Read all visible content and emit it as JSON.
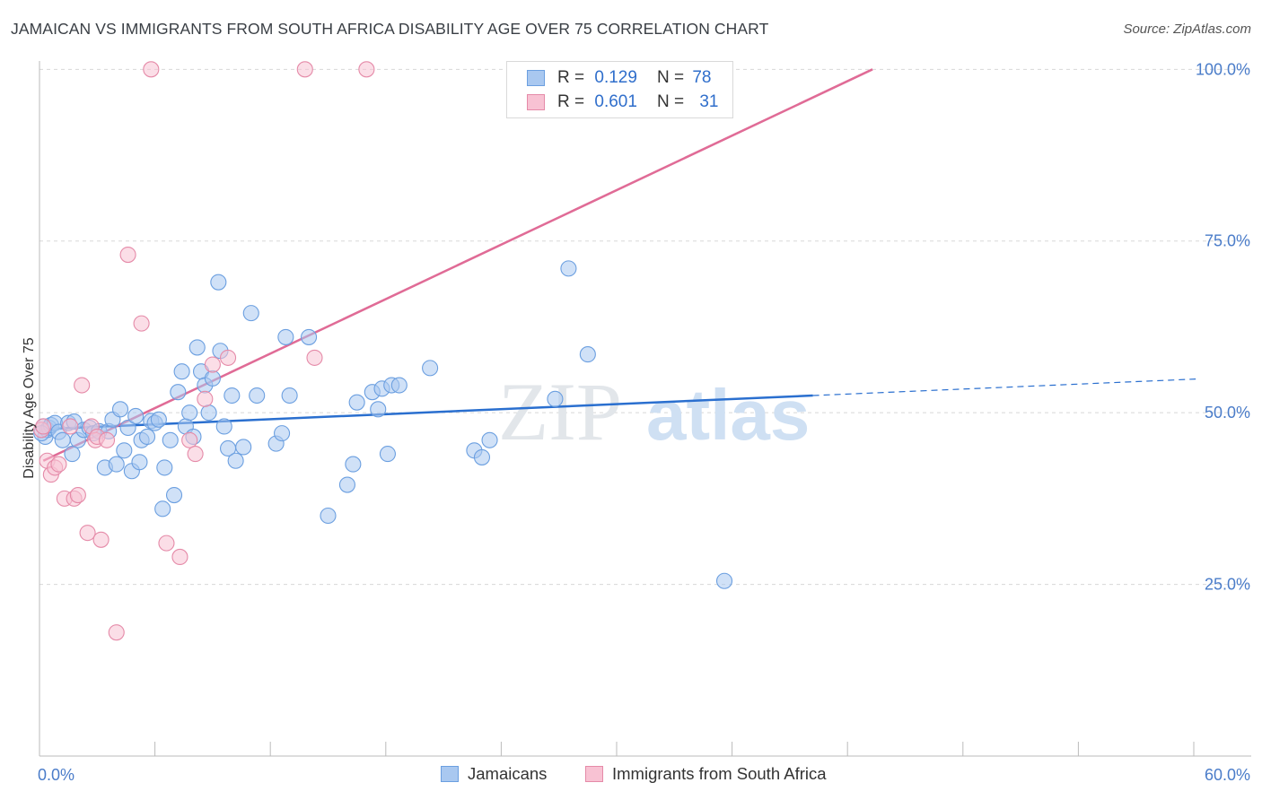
{
  "title": "JAMAICAN VS IMMIGRANTS FROM SOUTH AFRICA DISABILITY AGE OVER 75 CORRELATION CHART",
  "source": "Source: ZipAtlas.com",
  "watermark": {
    "zip": "ZIP",
    "atlas": "atlas"
  },
  "legend": {
    "rows": [
      {
        "r_label": "R =",
        "r_value": "0.129",
        "n_label": "N =",
        "n_value": "78",
        "color": "#a9c8f0",
        "border": "#6b9fe0"
      },
      {
        "r_label": "R =",
        "r_value": "0.601",
        "n_label": "N =",
        "n_value": "31",
        "color": "#f8c2d3",
        "border": "#e58aa8"
      }
    ]
  },
  "bottom_legend": [
    {
      "label": "Jamaicans",
      "color": "#a9c8f0",
      "border": "#6b9fe0"
    },
    {
      "label": "Immigrants from South Africa",
      "color": "#f8c2d3",
      "border": "#e58aa8"
    }
  ],
  "chart_data": {
    "type": "scatter",
    "title": "JAMAICAN VS IMMIGRANTS FROM SOUTH AFRICA DISABILITY AGE OVER 75 CORRELATION CHART",
    "xlabel": "",
    "ylabel": "Disability Age Over 75",
    "xlim": [
      0,
      60
    ],
    "ylim": [
      0,
      102
    ],
    "x_tick_labels": [
      {
        "value": 0,
        "label": "0.0%"
      },
      {
        "value": 60,
        "label": "60.0%"
      }
    ],
    "y_tick_labels": [
      {
        "value": 25,
        "label": "25.0%"
      },
      {
        "value": 50,
        "label": "50.0%"
      },
      {
        "value": 75,
        "label": "75.0%"
      },
      {
        "value": 100,
        "label": "100.0%"
      }
    ],
    "y_gridlines": [
      25,
      50,
      75,
      100
    ],
    "x_minor_ticks": [
      0,
      6,
      12,
      18,
      24,
      30,
      36,
      42,
      48,
      54,
      60
    ],
    "series": [
      {
        "name": "Jamaicans",
        "color": "#6b9fe0",
        "fill": "#a9c8f0",
        "trend": {
          "x0": 0.2,
          "y0": 47.6,
          "x1": 40.2,
          "y1": 52.5,
          "dash_to_x": 60.1,
          "dash_to_y": 54.9
        },
        "points": [
          [
            0.2,
            48.0
          ],
          [
            0.3,
            46.5
          ],
          [
            0.4,
            47.5
          ],
          [
            0.5,
            47.8
          ],
          [
            0.6,
            48.2
          ],
          [
            0.8,
            48.5
          ],
          [
            1.0,
            47.2
          ],
          [
            1.2,
            46.0
          ],
          [
            1.5,
            48.5
          ],
          [
            1.7,
            44.0
          ],
          [
            1.8,
            48.7
          ],
          [
            2.0,
            46.0
          ],
          [
            2.3,
            47.5
          ],
          [
            2.6,
            47.8
          ],
          [
            2.8,
            47.0
          ],
          [
            3.1,
            47.3
          ],
          [
            3.4,
            42.0
          ],
          [
            3.6,
            47.3
          ],
          [
            3.8,
            49.0
          ],
          [
            4.0,
            42.5
          ],
          [
            4.2,
            50.5
          ],
          [
            4.4,
            44.5
          ],
          [
            4.6,
            47.8
          ],
          [
            4.8,
            41.5
          ],
          [
            5.0,
            49.5
          ],
          [
            5.2,
            42.8
          ],
          [
            5.3,
            46.0
          ],
          [
            5.6,
            46.5
          ],
          [
            5.8,
            48.8
          ],
          [
            6.0,
            48.5
          ],
          [
            6.2,
            49.0
          ],
          [
            6.4,
            36.0
          ],
          [
            6.5,
            42.0
          ],
          [
            6.8,
            46.0
          ],
          [
            7.0,
            38.0
          ],
          [
            7.2,
            53.0
          ],
          [
            7.4,
            56.0
          ],
          [
            7.6,
            48.0
          ],
          [
            7.8,
            50.0
          ],
          [
            8.0,
            46.5
          ],
          [
            8.2,
            59.5
          ],
          [
            8.4,
            56.0
          ],
          [
            8.6,
            54.0
          ],
          [
            8.8,
            50.0
          ],
          [
            9.0,
            55.0
          ],
          [
            9.3,
            69.0
          ],
          [
            9.4,
            59.0
          ],
          [
            9.6,
            48.0
          ],
          [
            9.8,
            44.8
          ],
          [
            10.0,
            52.5
          ],
          [
            10.2,
            43.0
          ],
          [
            10.6,
            45.0
          ],
          [
            11.0,
            64.5
          ],
          [
            11.3,
            52.5
          ],
          [
            12.3,
            45.5
          ],
          [
            12.6,
            47.0
          ],
          [
            12.8,
            61.0
          ],
          [
            13.0,
            52.5
          ],
          [
            14.0,
            61.0
          ],
          [
            15.0,
            35.0
          ],
          [
            16.0,
            39.5
          ],
          [
            16.3,
            42.5
          ],
          [
            16.5,
            51.5
          ],
          [
            17.3,
            53.0
          ],
          [
            17.6,
            50.5
          ],
          [
            17.8,
            53.5
          ],
          [
            18.1,
            44.0
          ],
          [
            18.3,
            54.0
          ],
          [
            18.7,
            54.0
          ],
          [
            20.3,
            56.5
          ],
          [
            22.6,
            44.5
          ],
          [
            23.0,
            43.5
          ],
          [
            23.4,
            46.0
          ],
          [
            26.8,
            52.0
          ],
          [
            27.5,
            71.0
          ],
          [
            28.5,
            58.5
          ],
          [
            35.6,
            25.5
          ],
          [
            0.1,
            47.0
          ]
        ]
      },
      {
        "name": "Immigrants from South Africa",
        "color": "#e58aa8",
        "fill": "#f8c2d3",
        "trend": {
          "x0": 0.2,
          "y0": 43.0,
          "x1": 43.3,
          "y1": 100.0
        },
        "points": [
          [
            0.1,
            47.5
          ],
          [
            0.2,
            48.0
          ],
          [
            0.4,
            43.0
          ],
          [
            0.6,
            41.0
          ],
          [
            0.8,
            42.0
          ],
          [
            1.0,
            42.5
          ],
          [
            1.3,
            37.5
          ],
          [
            1.6,
            48.0
          ],
          [
            1.8,
            37.5
          ],
          [
            2.0,
            38.0
          ],
          [
            2.2,
            54.0
          ],
          [
            2.5,
            32.5
          ],
          [
            2.7,
            48.0
          ],
          [
            2.9,
            46.0
          ],
          [
            3.0,
            46.5
          ],
          [
            3.2,
            31.5
          ],
          [
            3.5,
            46.0
          ],
          [
            4.0,
            18.0
          ],
          [
            4.6,
            73.0
          ],
          [
            5.3,
            63.0
          ],
          [
            5.8,
            100.0
          ],
          [
            6.6,
            31.0
          ],
          [
            7.3,
            29.0
          ],
          [
            7.8,
            46.0
          ],
          [
            8.1,
            44.0
          ],
          [
            8.6,
            52.0
          ],
          [
            9.0,
            57.0
          ],
          [
            9.8,
            58.0
          ],
          [
            13.8,
            100.0
          ],
          [
            14.3,
            58.0
          ],
          [
            17.0,
            100.0
          ]
        ]
      }
    ]
  }
}
